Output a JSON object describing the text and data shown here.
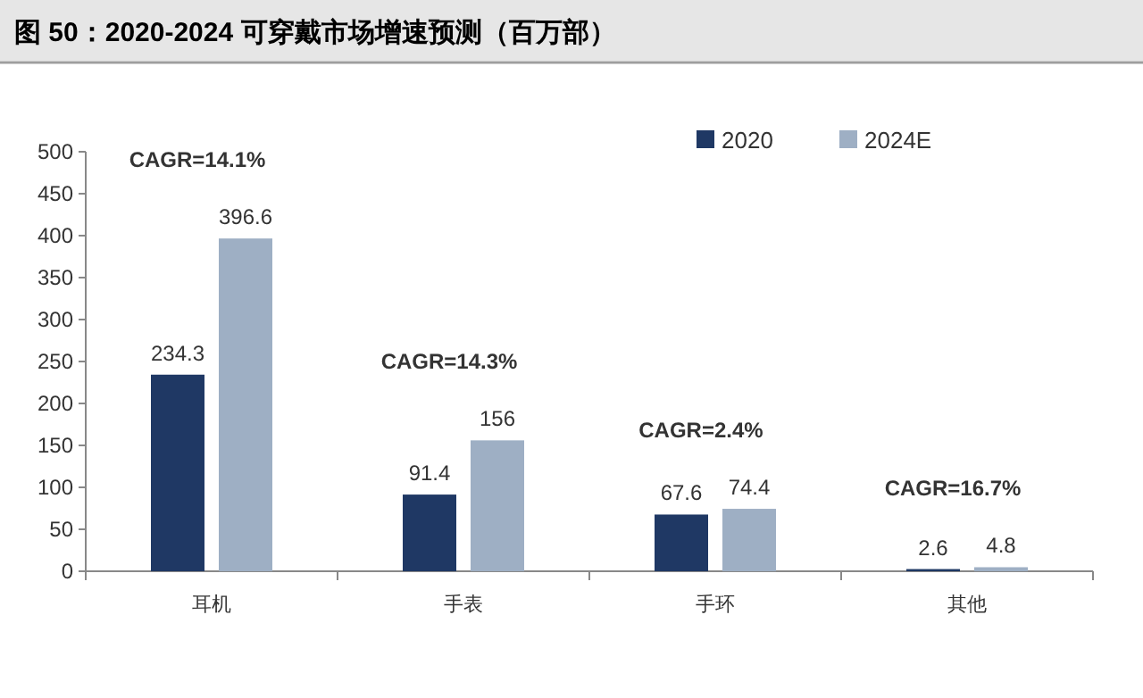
{
  "chart_data": {
    "type": "bar",
    "title": "图 50：2020-2024 可穿戴市场增速预测（百万部）",
    "categories": [
      "耳机",
      "手表",
      "手环",
      "其他"
    ],
    "series": [
      {
        "name": "2020",
        "color": "#1f3864",
        "values": [
          234.3,
          91.4,
          67.6,
          2.6
        ]
      },
      {
        "name": "2024E",
        "color": "#9eafc4",
        "values": [
          396.6,
          156,
          74.4,
          4.8
        ]
      }
    ],
    "ylim": [
      0,
      500
    ],
    "yticks": [
      0,
      50,
      100,
      150,
      200,
      250,
      300,
      350,
      400,
      450,
      500
    ],
    "data_labels": true,
    "legend": "top right",
    "grid": false,
    "annotations": [
      "CAGR=14.1%",
      "CAGR=14.3%",
      "CAGR=2.4%",
      "CAGR=16.7%"
    ]
  }
}
